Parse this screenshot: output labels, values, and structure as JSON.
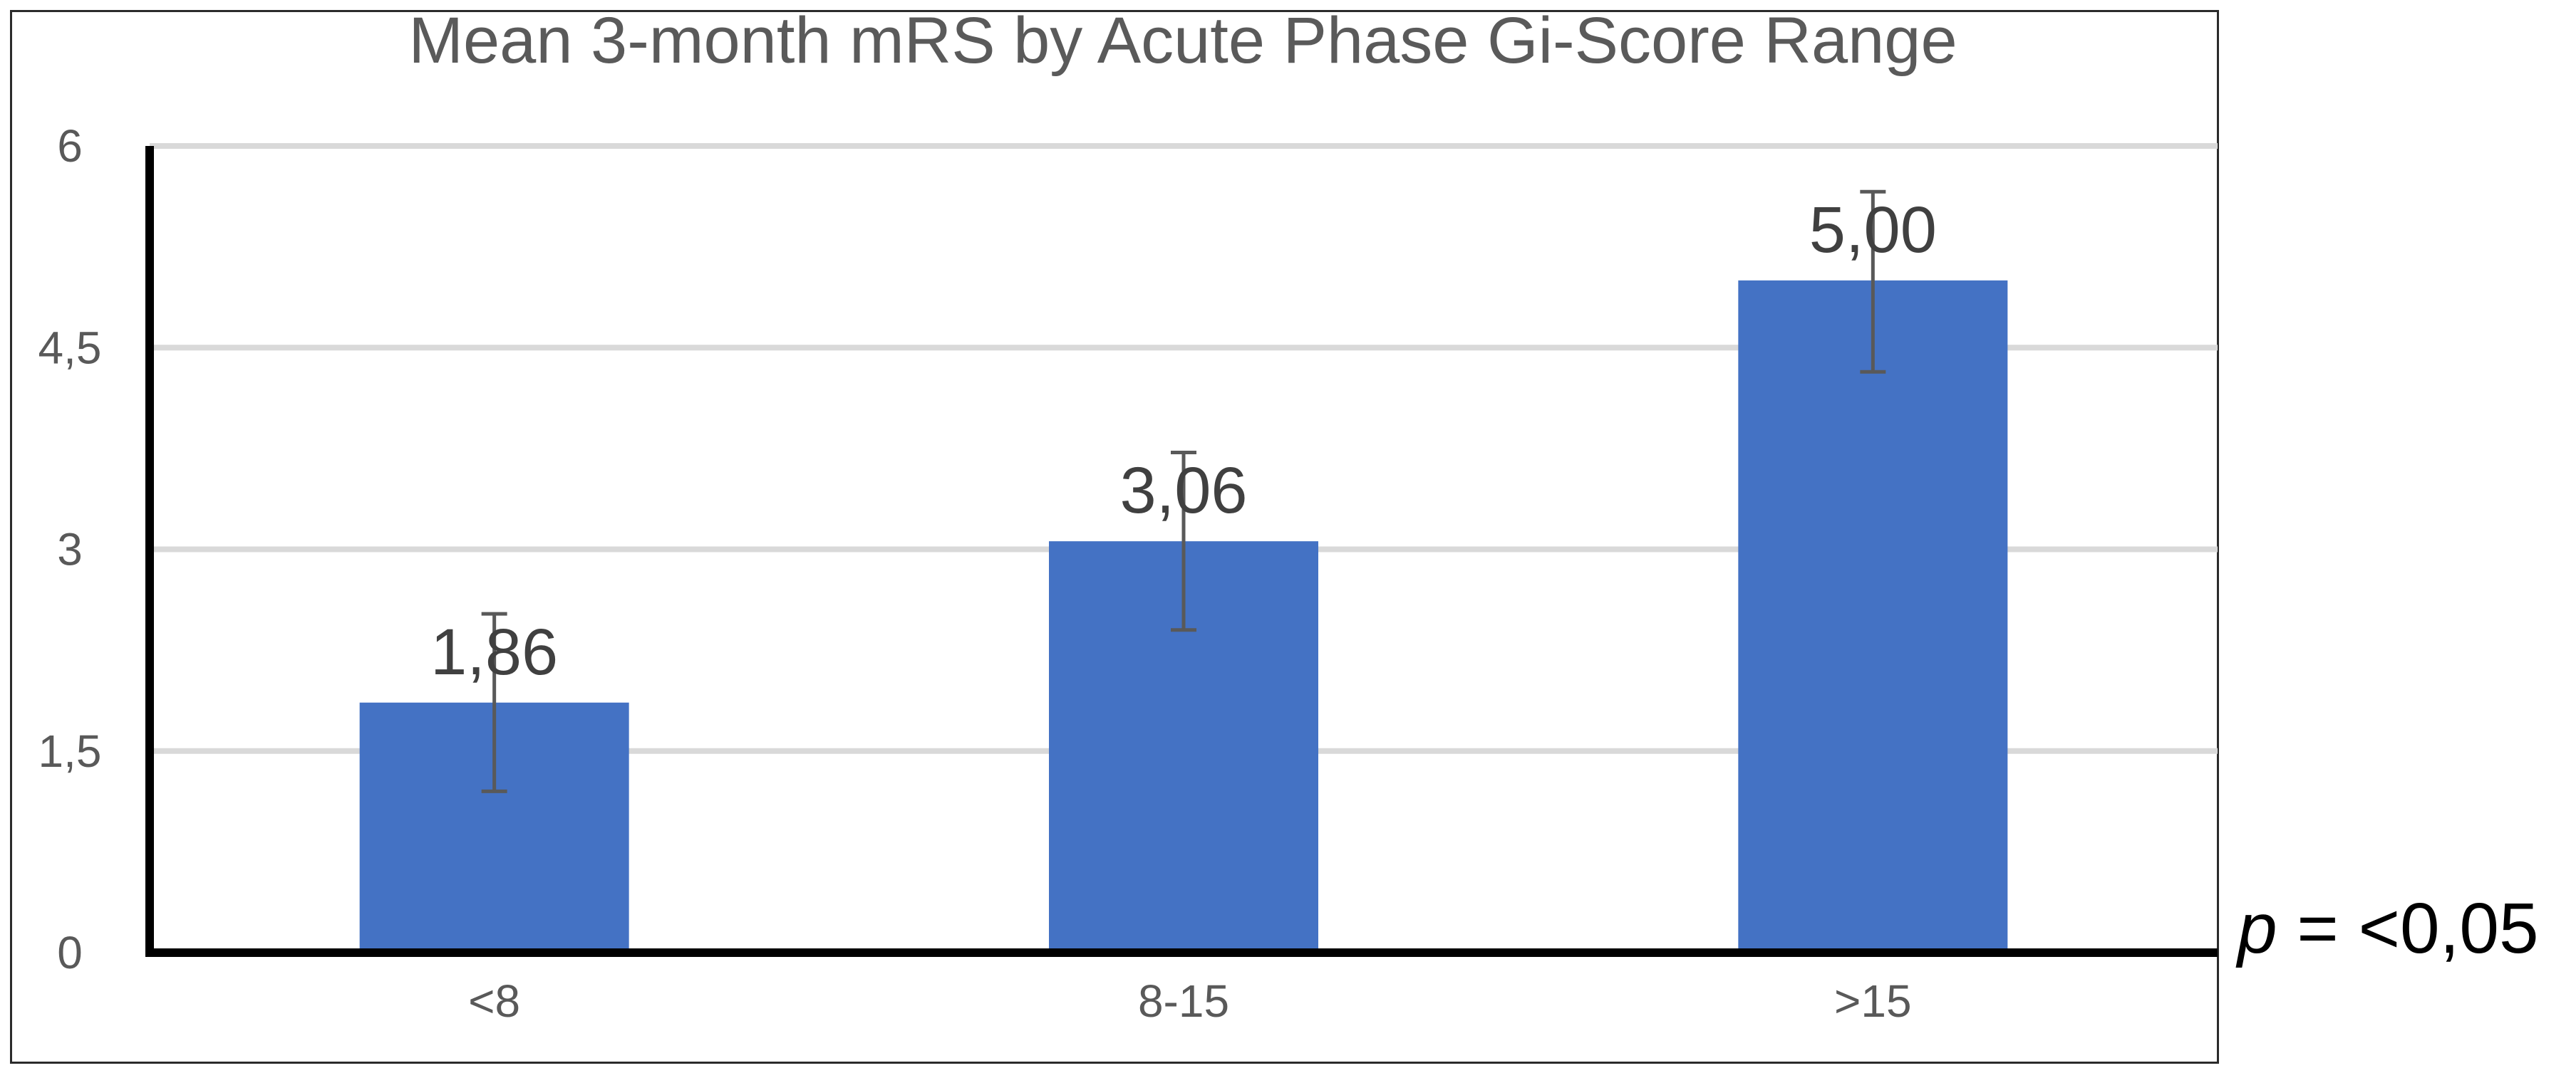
{
  "chart_data": {
    "type": "bar",
    "title": "Mean 3-month mRS by Acute Phase Gi-Score Range",
    "categories": [
      "<8",
      "8-15",
      ">15"
    ],
    "values": [
      1.86,
      3.06,
      5.0
    ],
    "data_labels": [
      "1,86",
      "3,06",
      "5,00"
    ],
    "error_bars": [
      [
        1.2,
        2.52
      ],
      [
        2.4,
        3.72
      ],
      [
        4.32,
        5.66
      ]
    ],
    "ylim": [
      0,
      6
    ],
    "yticks": [
      0,
      1.5,
      3,
      4.5,
      6
    ],
    "ytick_labels": [
      "0",
      "1,5",
      "3",
      "4,5",
      "6"
    ],
    "grid": true,
    "colors": {
      "bar": "#4472C4",
      "grid": "#D9D9D9",
      "axis": "#000000",
      "error": "#595959"
    },
    "annotation": {
      "italic": "p",
      "text": " = <0,05"
    }
  }
}
